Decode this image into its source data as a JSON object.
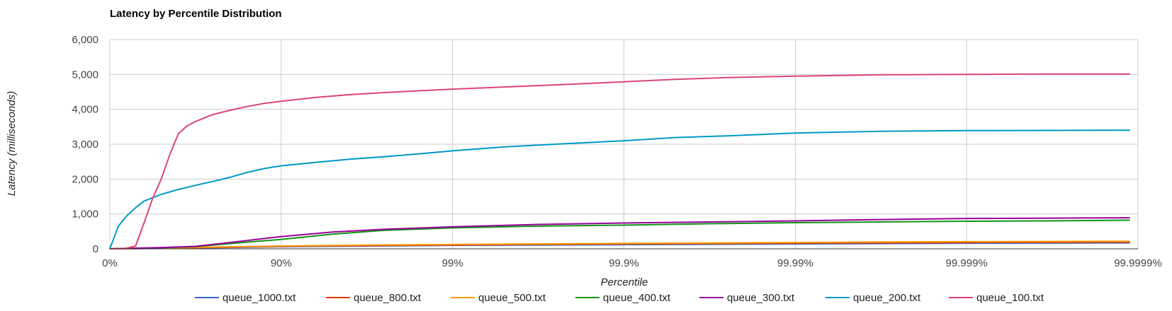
{
  "chart_data": {
    "type": "line",
    "title": "Latency by Percentile Distribution",
    "xlabel": "Percentile",
    "ylabel": "Latency (milliseconds)",
    "x_tick_labels": [
      "0%",
      "90%",
      "99%",
      "99.9%",
      "99.99%",
      "99.999%",
      "99.9999%"
    ],
    "x_tick_positions": [
      0,
      1,
      2,
      3,
      4,
      5,
      6
    ],
    "y_tick_labels": [
      "0",
      "1,000",
      "2,000",
      "3,000",
      "4,000",
      "5,000",
      "6,000"
    ],
    "ylim": [
      0,
      6000
    ],
    "xlim": [
      0,
      6
    ],
    "grid": true,
    "legend_position": "bottom",
    "series": [
      {
        "name": "queue_1000.txt",
        "color": "#3366cc",
        "x": [
          0,
          0.3,
          0.6,
          1,
          1.5,
          2,
          2.5,
          3,
          3.5,
          4,
          4.5,
          5,
          5.5,
          5.95
        ],
        "y": [
          0,
          10,
          30,
          60,
          80,
          100,
          110,
          120,
          130,
          140,
          150,
          160,
          165,
          170
        ]
      },
      {
        "name": "queue_800.txt",
        "color": "#dc3912",
        "x": [
          0,
          0.3,
          0.6,
          1,
          1.5,
          2,
          2.5,
          3,
          3.5,
          4,
          4.5,
          5,
          5.5,
          5.95
        ],
        "y": [
          0,
          15,
          40,
          70,
          90,
          110,
          125,
          140,
          150,
          160,
          170,
          180,
          185,
          190
        ]
      },
      {
        "name": "queue_500.txt",
        "color": "#ff9900",
        "x": [
          0,
          0.3,
          0.6,
          1,
          1.5,
          2,
          2.5,
          3,
          3.5,
          4,
          4.5,
          5,
          5.5,
          5.95
        ],
        "y": [
          0,
          20,
          50,
          80,
          105,
          125,
          140,
          155,
          165,
          180,
          195,
          205,
          210,
          215
        ]
      },
      {
        "name": "queue_400.txt",
        "color": "#109618",
        "x": [
          0,
          0.3,
          0.5,
          0.7,
          1,
          1.3,
          1.6,
          2,
          2.5,
          3,
          3.5,
          4,
          4.5,
          5,
          5.5,
          5.95
        ],
        "y": [
          0,
          30,
          60,
          150,
          270,
          420,
          530,
          600,
          650,
          680,
          720,
          750,
          770,
          790,
          800,
          820
        ]
      },
      {
        "name": "queue_300.txt",
        "color": "#990099",
        "x": [
          0,
          0.3,
          0.5,
          0.7,
          1,
          1.3,
          1.6,
          2,
          2.5,
          3,
          3.5,
          4,
          4.5,
          5,
          5.5,
          5.95
        ],
        "y": [
          0,
          35,
          70,
          180,
          350,
          480,
          560,
          630,
          700,
          740,
          770,
          800,
          840,
          870,
          880,
          890
        ]
      },
      {
        "name": "queue_200.txt",
        "color": "#0099c6",
        "x": [
          0,
          0.05,
          0.1,
          0.15,
          0.2,
          0.3,
          0.4,
          0.5,
          0.6,
          0.7,
          0.8,
          0.9,
          1,
          1.2,
          1.4,
          1.6,
          1.8,
          2,
          2.3,
          2.6,
          3,
          3.3,
          3.6,
          4,
          4.5,
          5,
          5.5,
          5.95
        ],
        "y": [
          0,
          650,
          950,
          1180,
          1370,
          1560,
          1700,
          1820,
          1930,
          2050,
          2190,
          2300,
          2380,
          2480,
          2570,
          2640,
          2720,
          2810,
          2920,
          3000,
          3100,
          3190,
          3240,
          3320,
          3370,
          3390,
          3395,
          3400
        ]
      },
      {
        "name": "queue_100.txt",
        "color": "#dd4477",
        "x": [
          0,
          0.05,
          0.1,
          0.15,
          0.2,
          0.25,
          0.3,
          0.35,
          0.4,
          0.45,
          0.5,
          0.6,
          0.7,
          0.8,
          0.9,
          1,
          1.2,
          1.4,
          1.6,
          1.8,
          2,
          2.3,
          2.6,
          3,
          3.3,
          3.6,
          4,
          4.5,
          5,
          5.5,
          5.95
        ],
        "y": [
          0,
          0,
          20,
          80,
          750,
          1450,
          2000,
          2700,
          3300,
          3520,
          3650,
          3850,
          3970,
          4080,
          4170,
          4230,
          4340,
          4420,
          4480,
          4530,
          4580,
          4640,
          4700,
          4790,
          4860,
          4910,
          4950,
          4990,
          5000,
          5010,
          5010
        ]
      }
    ]
  }
}
